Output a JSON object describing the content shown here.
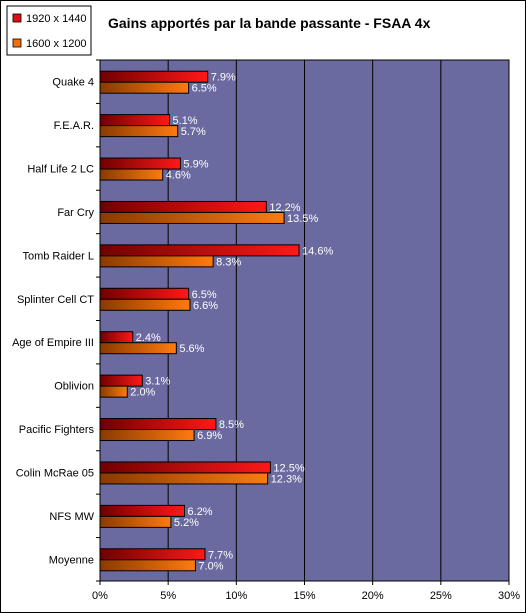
{
  "chart_data": {
    "type": "bar",
    "orientation": "horizontal",
    "title": "Gains apportés par la bande passante - FSAA 4x",
    "categories": [
      "Quake 4",
      "F.E.A.R.",
      "Half Life 2 LC",
      "Far Cry",
      "Tomb Raider L",
      "Splinter Cell CT",
      "Age of Empire III",
      "Oblivion",
      "Pacific Fighters",
      "Colin McRae 05",
      "NFS MW",
      "Moyenne"
    ],
    "series": [
      {
        "name": "1920 x 1440",
        "color": "#e01010",
        "values": [
          7.9,
          5.1,
          5.9,
          12.2,
          14.6,
          6.5,
          2.4,
          3.1,
          8.5,
          12.5,
          6.2,
          7.7
        ],
        "labels": [
          "7.9%",
          "5.1%",
          "5.9%",
          "12.2%",
          "14.6%",
          "6.5%",
          "2.4%",
          "3.1%",
          "8.5%",
          "12.5%",
          "6.2%",
          "7.7%"
        ]
      },
      {
        "name": "1600 x 1200",
        "color": "#f07010",
        "values": [
          6.5,
          5.7,
          4.6,
          13.5,
          8.3,
          6.6,
          5.6,
          2.0,
          6.9,
          12.3,
          5.2,
          7.0
        ],
        "labels": [
          "6.5%",
          "5.7%",
          "4.6%",
          "13.5%",
          "8.3%",
          "6.6%",
          "5.6%",
          "2.0%",
          "6.9%",
          "12.3%",
          "5.2%",
          "7.0%"
        ]
      }
    ],
    "xlim": [
      0,
      30
    ],
    "xticks": [
      "0%",
      "5%",
      "10%",
      "15%",
      "20%",
      "25%",
      "30%"
    ],
    "plot_background": "#6a6aa0",
    "grid": true,
    "legend_position": "top-left"
  }
}
